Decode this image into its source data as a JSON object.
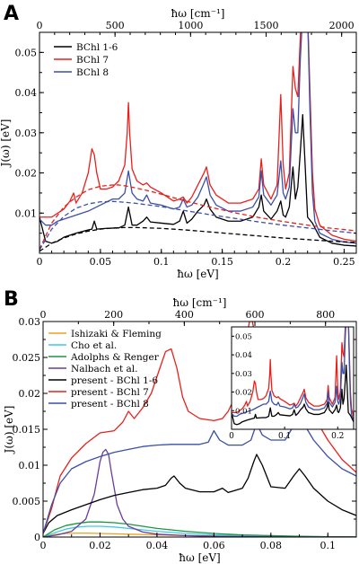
{
  "chart_data": [
    {
      "panel": "A",
      "type": "line",
      "xlabel": "ħω [eV]",
      "ylabel": "J(ω) [eV]",
      "x2label": "ħω [cm⁻¹]",
      "xlim": [
        0,
        0.26
      ],
      "ylim": [
        0,
        0.055
      ],
      "x_ticks": [
        "0",
        "0.05",
        "0.1",
        "0.15",
        "0.2",
        "0.25"
      ],
      "y_ticks": [
        "0.01",
        "0.02",
        "0.03",
        "0.04",
        "0.05"
      ],
      "x2_ticks": [
        "0",
        "500",
        "1000",
        "1500",
        "2000"
      ],
      "legend": {
        "placement": "top-left",
        "entries": [
          "BChl 1-6",
          "BChl 7",
          "BChl 8"
        ]
      },
      "series": [
        {
          "name": "BChl 1-6",
          "color": "#000000",
          "style": "solid",
          "x": [
            0,
            0.005,
            0.01,
            0.015,
            0.02,
            0.03,
            0.04,
            0.043,
            0.045,
            0.047,
            0.055,
            0.065,
            0.07,
            0.073,
            0.076,
            0.08,
            0.085,
            0.088,
            0.091,
            0.1,
            0.11,
            0.115,
            0.118,
            0.121,
            0.125,
            0.13,
            0.135,
            0.137,
            0.14,
            0.145,
            0.155,
            0.165,
            0.175,
            0.18,
            0.182,
            0.184,
            0.19,
            0.195,
            0.198,
            0.2,
            0.202,
            0.205,
            0.208,
            0.21,
            0.212,
            0.214,
            0.216,
            0.218,
            0.22,
            0.224,
            0.23,
            0.24,
            0.25,
            0.26
          ],
          "y": [
            0.009,
            0.003,
            0.0025,
            0.003,
            0.004,
            0.005,
            0.0058,
            0.006,
            0.008,
            0.006,
            0.0062,
            0.0063,
            0.007,
            0.0115,
            0.007,
            0.007,
            0.008,
            0.009,
            0.0078,
            0.0075,
            0.0072,
            0.008,
            0.0105,
            0.0075,
            0.0085,
            0.0105,
            0.012,
            0.0135,
            0.011,
            0.009,
            0.008,
            0.008,
            0.009,
            0.0115,
            0.0145,
            0.0105,
            0.0085,
            0.0105,
            0.013,
            0.0095,
            0.009,
            0.0115,
            0.0215,
            0.0135,
            0.0165,
            0.025,
            0.0345,
            0.022,
            0.009,
            0.0075,
            0.004,
            0.0025,
            0.002,
            0.0018
          ]
        },
        {
          "name": "BChl 7",
          "color": "#e8201c",
          "style": "solid",
          "x": [
            0,
            0.005,
            0.01,
            0.02,
            0.025,
            0.028,
            0.03,
            0.035,
            0.04,
            0.043,
            0.045,
            0.047,
            0.05,
            0.055,
            0.06,
            0.065,
            0.07,
            0.072,
            0.073,
            0.074,
            0.076,
            0.08,
            0.085,
            0.088,
            0.091,
            0.1,
            0.11,
            0.115,
            0.118,
            0.121,
            0.125,
            0.13,
            0.135,
            0.137,
            0.14,
            0.145,
            0.155,
            0.165,
            0.175,
            0.18,
            0.182,
            0.184,
            0.19,
            0.195,
            0.198,
            0.2,
            0.202,
            0.205,
            0.208,
            0.21,
            0.212,
            0.214,
            0.216,
            0.218,
            0.22,
            0.222,
            0.224,
            0.226,
            0.23,
            0.24,
            0.25,
            0.26
          ],
          "y": [
            0.009,
            0.009,
            0.009,
            0.011,
            0.013,
            0.015,
            0.0125,
            0.015,
            0.02,
            0.026,
            0.0245,
            0.02,
            0.016,
            0.016,
            0.0165,
            0.018,
            0.022,
            0.03,
            0.0375,
            0.03,
            0.021,
            0.018,
            0.017,
            0.0175,
            0.0165,
            0.015,
            0.013,
            0.0135,
            0.014,
            0.0125,
            0.014,
            0.017,
            0.02,
            0.0215,
            0.017,
            0.0145,
            0.0125,
            0.0125,
            0.0135,
            0.016,
            0.0235,
            0.017,
            0.0135,
            0.017,
            0.0395,
            0.022,
            0.016,
            0.02,
            0.0465,
            0.041,
            0.039,
            0.0535,
            0.068,
            0.06,
            0.06,
            0.04,
            0.02,
            0.011,
            0.007,
            0.0045,
            0.0035,
            0.003
          ]
        },
        {
          "name": "BChl 8",
          "color": "#3a4fa8",
          "style": "solid",
          "x": [
            0,
            0.005,
            0.01,
            0.015,
            0.02,
            0.03,
            0.04,
            0.05,
            0.06,
            0.065,
            0.07,
            0.073,
            0.076,
            0.08,
            0.085,
            0.088,
            0.091,
            0.1,
            0.11,
            0.115,
            0.118,
            0.121,
            0.125,
            0.13,
            0.135,
            0.137,
            0.14,
            0.145,
            0.155,
            0.165,
            0.175,
            0.18,
            0.182,
            0.184,
            0.19,
            0.195,
            0.198,
            0.2,
            0.202,
            0.205,
            0.208,
            0.21,
            0.212,
            0.214,
            0.216,
            0.218,
            0.22,
            0.222,
            0.224,
            0.226,
            0.23,
            0.24,
            0.25,
            0.26
          ],
          "y": [
            0.0085,
            0.007,
            0.007,
            0.008,
            0.0085,
            0.0095,
            0.0105,
            0.012,
            0.0135,
            0.0135,
            0.015,
            0.0205,
            0.015,
            0.0135,
            0.013,
            0.0145,
            0.0125,
            0.012,
            0.011,
            0.0115,
            0.0135,
            0.0115,
            0.012,
            0.014,
            0.0175,
            0.019,
            0.0145,
            0.012,
            0.0105,
            0.0105,
            0.0115,
            0.014,
            0.0205,
            0.0145,
            0.012,
            0.0145,
            0.023,
            0.015,
            0.0135,
            0.0165,
            0.036,
            0.03,
            0.03,
            0.048,
            0.06,
            0.06,
            0.06,
            0.035,
            0.015,
            0.008,
            0.005,
            0.0035,
            0.0028,
            0.0025
          ]
        },
        {
          "name": "BChl 1-6 (fit)",
          "color": "#000000",
          "style": "dashed",
          "x": [
            0,
            0.01,
            0.02,
            0.03,
            0.04,
            0.05,
            0.06,
            0.07,
            0.08,
            0.1,
            0.12,
            0.14,
            0.16,
            0.18,
            0.2,
            0.22,
            0.24,
            0.26
          ],
          "y": [
            0.0005,
            0.0025,
            0.0038,
            0.0048,
            0.0055,
            0.006,
            0.0063,
            0.0064,
            0.0064,
            0.0062,
            0.0058,
            0.0053,
            0.0048,
            0.0043,
            0.0038,
            0.0034,
            0.003,
            0.0027
          ]
        },
        {
          "name": "BChl 7 (fit)",
          "color": "#e8201c",
          "style": "dashed",
          "x": [
            0,
            0.01,
            0.02,
            0.03,
            0.04,
            0.05,
            0.06,
            0.065,
            0.07,
            0.08,
            0.09,
            0.1,
            0.12,
            0.14,
            0.16,
            0.18,
            0.2,
            0.22,
            0.24,
            0.26
          ],
          "y": [
            0.001,
            0.0075,
            0.0115,
            0.014,
            0.0158,
            0.0167,
            0.017,
            0.017,
            0.0168,
            0.0162,
            0.0155,
            0.0147,
            0.013,
            0.0115,
            0.0101,
            0.0089,
            0.0079,
            0.007,
            0.0062,
            0.0056
          ]
        },
        {
          "name": "BChl 8 (fit)",
          "color": "#3a4fa8",
          "style": "dashed",
          "x": [
            0,
            0.01,
            0.02,
            0.03,
            0.04,
            0.05,
            0.06,
            0.07,
            0.08,
            0.1,
            0.12,
            0.14,
            0.16,
            0.18,
            0.2,
            0.22,
            0.24,
            0.26
          ],
          "y": [
            0.0008,
            0.006,
            0.0092,
            0.0112,
            0.0123,
            0.0128,
            0.0129,
            0.0127,
            0.0124,
            0.0116,
            0.0106,
            0.0096,
            0.0087,
            0.0078,
            0.007,
            0.0063,
            0.0056,
            0.005
          ]
        }
      ]
    },
    {
      "panel": "B",
      "type": "line",
      "xlabel": "ħω [eV]",
      "ylabel": "J(ω) [eV]",
      "x2label": "ħω [cm⁻¹]",
      "xlim": [
        0,
        0.11
      ],
      "ylim": [
        0,
        0.03
      ],
      "x_ticks": [
        "0",
        "0.02",
        "0.04",
        "0.06",
        "0.08",
        "0.1"
      ],
      "y_ticks": [
        "0",
        "0.005",
        "0.01",
        "0.015",
        "0.02",
        "0.025",
        "0.03"
      ],
      "x2_ticks": [
        "0",
        "200",
        "400",
        "600",
        "800"
      ],
      "legend": {
        "placement": "top-left",
        "entries": [
          "Ishizaki & Fleming",
          "Cho et al.",
          "Adolphs & Renger",
          "Nalbach et al.",
          "present - BChl 1-6",
          "present - BChl 7",
          "present - BChl 8"
        ]
      },
      "series": [
        {
          "name": "Ishizaki & Fleming",
          "color": "#f0a020",
          "style": "solid",
          "x": [
            0,
            0.004,
            0.008,
            0.012,
            0.016,
            0.02,
            0.025,
            0.03,
            0.04,
            0.05,
            0.06,
            0.07,
            0.08,
            0.09,
            0.1,
            0.11
          ],
          "y": [
            0,
            0.00035,
            0.0005,
            0.00055,
            0.00055,
            0.0005,
            0.00045,
            0.0004,
            0.0003,
            0.0002,
            0.00015,
            0.0001,
            7e-05,
            5e-05,
            3e-05,
            2e-05
          ]
        },
        {
          "name": "Cho et al.",
          "color": "#40c8e8",
          "style": "solid",
          "x": [
            0,
            0.004,
            0.008,
            0.012,
            0.016,
            0.02,
            0.025,
            0.03,
            0.035,
            0.04,
            0.05,
            0.06,
            0.07,
            0.08,
            0.09,
            0.1,
            0.11
          ],
          "y": [
            0,
            0.0006,
            0.0011,
            0.0014,
            0.0015,
            0.0015,
            0.0014,
            0.0012,
            0.001,
            0.0008,
            0.0005,
            0.0003,
            0.0002,
            0.0001,
            7e-05,
            4e-05,
            2e-05
          ]
        },
        {
          "name": "Adolphs & Renger",
          "color": "#1a9641",
          "style": "solid",
          "x": [
            0,
            0.004,
            0.008,
            0.012,
            0.016,
            0.02,
            0.025,
            0.03,
            0.035,
            0.04,
            0.05,
            0.06,
            0.07,
            0.08,
            0.09,
            0.1,
            0.11
          ],
          "y": [
            0,
            0.001,
            0.0016,
            0.0019,
            0.0021,
            0.0021,
            0.002,
            0.0018,
            0.0015,
            0.0012,
            0.0008,
            0.0005,
            0.0003,
            0.0002,
            0.0001,
            5e-05,
            3e-05
          ]
        },
        {
          "name": "Nalbach et al.",
          "color": "#6a3d9a",
          "style": "solid",
          "x": [
            0,
            0.005,
            0.01,
            0.015,
            0.018,
            0.02,
            0.021,
            0.022,
            0.023,
            0.024,
            0.026,
            0.028,
            0.03,
            0.035,
            0.04,
            0.05,
            0.06,
            0.07,
            0.08,
            0.09,
            0.1,
            0.11
          ],
          "y": [
            0,
            0.0003,
            0.0008,
            0.0025,
            0.006,
            0.0105,
            0.0118,
            0.0122,
            0.0115,
            0.009,
            0.0045,
            0.0025,
            0.0015,
            0.0007,
            0.0004,
            0.0002,
            0.0001,
            6e-05,
            3e-05,
            2e-05,
            1e-05,
            1e-05
          ]
        },
        {
          "name": "present - BChl 1-6",
          "color": "#000000",
          "style": "solid",
          "x": [
            0,
            0.002,
            0.005,
            0.01,
            0.015,
            0.02,
            0.025,
            0.03,
            0.035,
            0.04,
            0.043,
            0.045,
            0.046,
            0.048,
            0.05,
            0.055,
            0.06,
            0.063,
            0.065,
            0.07,
            0.072,
            0.074,
            0.075,
            0.077,
            0.08,
            0.085,
            0.088,
            0.09,
            0.092,
            0.095,
            0.1,
            0.105,
            0.11
          ],
          "y": [
            0.0005,
            0.002,
            0.003,
            0.0038,
            0.0045,
            0.0052,
            0.0058,
            0.0062,
            0.0066,
            0.0068,
            0.0072,
            0.0082,
            0.0085,
            0.0075,
            0.0068,
            0.0063,
            0.0063,
            0.0068,
            0.0062,
            0.0068,
            0.0082,
            0.0105,
            0.0115,
            0.01,
            0.007,
            0.0068,
            0.0085,
            0.0095,
            0.0085,
            0.0068,
            0.005,
            0.0038,
            0.003
          ]
        },
        {
          "name": "present - BChl 7",
          "color": "#e8201c",
          "style": "solid",
          "x": [
            0,
            0.003,
            0.006,
            0.01,
            0.015,
            0.02,
            0.025,
            0.028,
            0.03,
            0.032,
            0.035,
            0.038,
            0.041,
            0.043,
            0.045,
            0.047,
            0.049,
            0.051,
            0.055,
            0.06,
            0.063,
            0.065,
            0.068,
            0.07,
            0.072,
            0.073,
            0.074,
            0.076,
            0.078,
            0.082,
            0.086,
            0.088,
            0.09,
            0.092,
            0.096,
            0.1,
            0.105,
            0.11
          ],
          "y": [
            0.0005,
            0.004,
            0.0085,
            0.011,
            0.013,
            0.0145,
            0.0148,
            0.016,
            0.0175,
            0.0165,
            0.018,
            0.02,
            0.0235,
            0.0258,
            0.0262,
            0.0235,
            0.0195,
            0.0175,
            0.0165,
            0.0162,
            0.0165,
            0.0175,
            0.02,
            0.0235,
            0.029,
            0.031,
            0.029,
            0.021,
            0.0175,
            0.017,
            0.0182,
            0.0195,
            0.0205,
            0.0195,
            0.0162,
            0.0135,
            0.0108,
            0.009
          ]
        },
        {
          "name": "present - BChl 8",
          "color": "#3a4fa8",
          "style": "solid",
          "x": [
            0,
            0.003,
            0.006,
            0.01,
            0.015,
            0.02,
            0.025,
            0.03,
            0.035,
            0.04,
            0.045,
            0.05,
            0.055,
            0.058,
            0.06,
            0.062,
            0.065,
            0.07,
            0.073,
            0.075,
            0.077,
            0.08,
            0.085,
            0.088,
            0.09,
            0.092,
            0.095,
            0.1,
            0.105,
            0.11
          ],
          "y": [
            0.0005,
            0.0045,
            0.0075,
            0.0095,
            0.0105,
            0.0112,
            0.0118,
            0.0122,
            0.0126,
            0.0128,
            0.0129,
            0.0129,
            0.0129,
            0.0132,
            0.0148,
            0.0135,
            0.0128,
            0.0128,
            0.0135,
            0.0158,
            0.0142,
            0.0135,
            0.0135,
            0.0155,
            0.0165,
            0.0155,
            0.0135,
            0.0112,
            0.0095,
            0.0085
          ]
        }
      ]
    },
    {
      "panel": "B-inset",
      "type": "line",
      "xlim": [
        0,
        0.23
      ],
      "ylim": [
        0,
        0.055
      ],
      "x_ticks": [
        "0",
        "0.1",
        "0.2"
      ],
      "y_ticks": [
        "0.01",
        "0.02",
        "0.03",
        "0.04",
        "0.05"
      ]
    }
  ]
}
